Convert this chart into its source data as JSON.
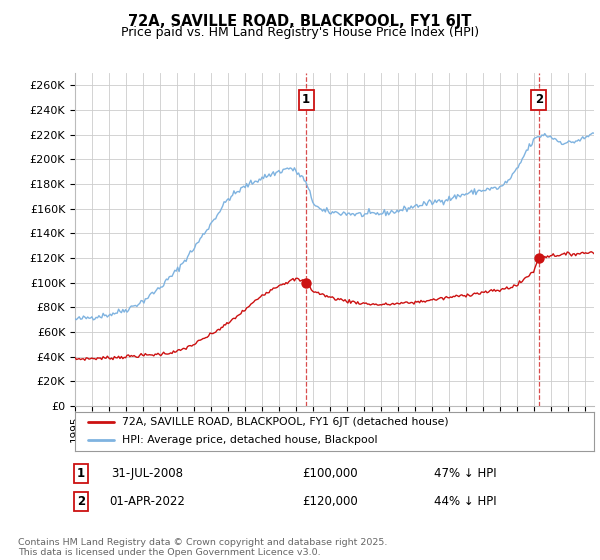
{
  "title": "72A, SAVILLE ROAD, BLACKPOOL, FY1 6JT",
  "subtitle": "Price paid vs. HM Land Registry's House Price Index (HPI)",
  "ylabel_ticks": [
    "£0",
    "£20K",
    "£40K",
    "£60K",
    "£80K",
    "£100K",
    "£120K",
    "£140K",
    "£160K",
    "£180K",
    "£200K",
    "£220K",
    "£240K",
    "£260K"
  ],
  "ytick_vals": [
    0,
    20000,
    40000,
    60000,
    80000,
    100000,
    120000,
    140000,
    160000,
    180000,
    200000,
    220000,
    240000,
    260000
  ],
  "ylim": [
    0,
    270000
  ],
  "xlim_start": 1995,
  "xlim_end": 2025.5,
  "hpi_color": "#7fb3e0",
  "price_color": "#cc1111",
  "hpi_noise_seed": 42,
  "hpi_noise_scale": 1200,
  "price_noise_seed": 7,
  "price_noise_scale": 700,
  "sale1_year": 2008.583,
  "sale2_year": 2022.25,
  "sale1_price": 100000,
  "sale2_price": 120000,
  "annotation1": {
    "label": "1",
    "date": "31-JUL-2008",
    "price": "£100,000",
    "pct": "47% ↓ HPI"
  },
  "annotation2": {
    "label": "2",
    "date": "01-APR-2022",
    "price": "£120,000",
    "pct": "44% ↓ HPI"
  },
  "legend_line1": "72A, SAVILLE ROAD, BLACKPOOL, FY1 6JT (detached house)",
  "legend_line2": "HPI: Average price, detached house, Blackpool",
  "footer": "Contains HM Land Registry data © Crown copyright and database right 2025.\nThis data is licensed under the Open Government Licence v3.0.",
  "background_color": "#ffffff",
  "grid_color": "#cccccc",
  "hpi_pts_x": [
    1995.0,
    1996.0,
    1997.0,
    1998.0,
    1999.0,
    2000.0,
    2001.0,
    2002.0,
    2003.0,
    2004.0,
    2005.0,
    2006.0,
    2007.0,
    2007.6,
    2008.0,
    2008.5,
    2009.0,
    2009.5,
    2010.0,
    2011.0,
    2012.0,
    2013.0,
    2014.0,
    2015.0,
    2016.0,
    2017.0,
    2018.0,
    2019.0,
    2020.0,
    2020.5,
    2021.0,
    2021.5,
    2022.0,
    2022.5,
    2023.0,
    2023.5,
    2024.0,
    2024.5,
    2025.0,
    2025.5
  ],
  "hpi_pts_y": [
    70000,
    72000,
    74000,
    78000,
    85000,
    96000,
    110000,
    128000,
    148000,
    168000,
    178000,
    185000,
    190000,
    193000,
    190000,
    183000,
    165000,
    158000,
    157000,
    156000,
    155000,
    156000,
    158000,
    162000,
    165000,
    168000,
    172000,
    175000,
    177000,
    183000,
    192000,
    206000,
    216000,
    220000,
    218000,
    214000,
    213000,
    215000,
    217000,
    222000
  ],
  "price_pts_x": [
    1995.0,
    1996.0,
    1997.0,
    1998.0,
    1999.0,
    2000.0,
    2001.0,
    2002.0,
    2003.0,
    2004.0,
    2005.0,
    2006.0,
    2007.0,
    2008.0,
    2008.583,
    2009.0,
    2010.0,
    2011.0,
    2012.0,
    2013.0,
    2014.0,
    2015.0,
    2016.0,
    2017.0,
    2018.0,
    2019.0,
    2020.0,
    2021.0,
    2022.0,
    2022.25,
    2023.0,
    2024.0,
    2025.0,
    2025.5
  ],
  "price_pts_y": [
    38000,
    38500,
    39000,
    40000,
    41000,
    42000,
    44000,
    50000,
    58000,
    67000,
    78000,
    90000,
    98000,
    103000,
    100000,
    93000,
    88000,
    85000,
    83000,
    82000,
    83000,
    84000,
    86000,
    88000,
    90000,
    92000,
    94000,
    98000,
    110000,
    120000,
    122000,
    123000,
    124000,
    125000
  ]
}
